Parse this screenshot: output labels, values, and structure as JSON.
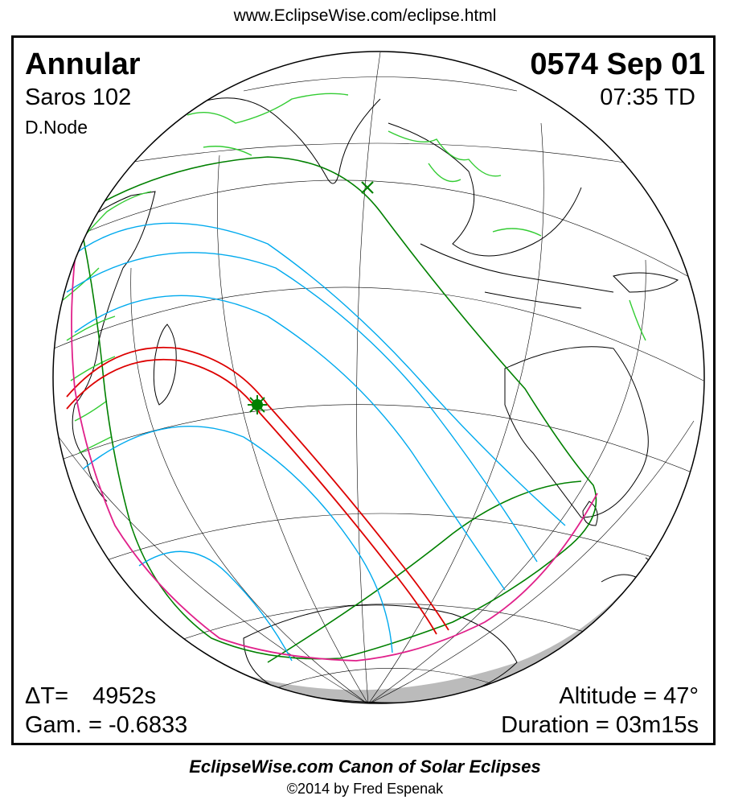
{
  "header": {
    "url": "www.EclipseWise.com/eclipse.html"
  },
  "info": {
    "type": "Annular",
    "saros": "Saros 102",
    "node": "D.Node",
    "date": "0574 Sep 01",
    "time": "07:35 TD",
    "delta_t_label": "ΔT=",
    "delta_t_value": "4952s",
    "gamma": "Gam. = -0.6833",
    "altitude": "Altitude = 47°",
    "duration": "Duration = 03m15s"
  },
  "footer": {
    "canon": "EclipseWise.com Canon of Solar Eclipses",
    "copyright": "©2014 by Fred Espenak"
  },
  "colors": {
    "coast": "#000000",
    "borders": "#33cc33",
    "penumbral_limit": "#008000",
    "partial_curves": "#00aaee",
    "central_path": "#dd0000",
    "rise_set": "#e0208a",
    "night": "#bbbbbb",
    "greatest_eclipse_marker": "#008000"
  },
  "map": {
    "projection": "orthographic",
    "greatest_eclipse_marker": "star-icon",
    "subsolar_marker": "x-mark-icon"
  }
}
